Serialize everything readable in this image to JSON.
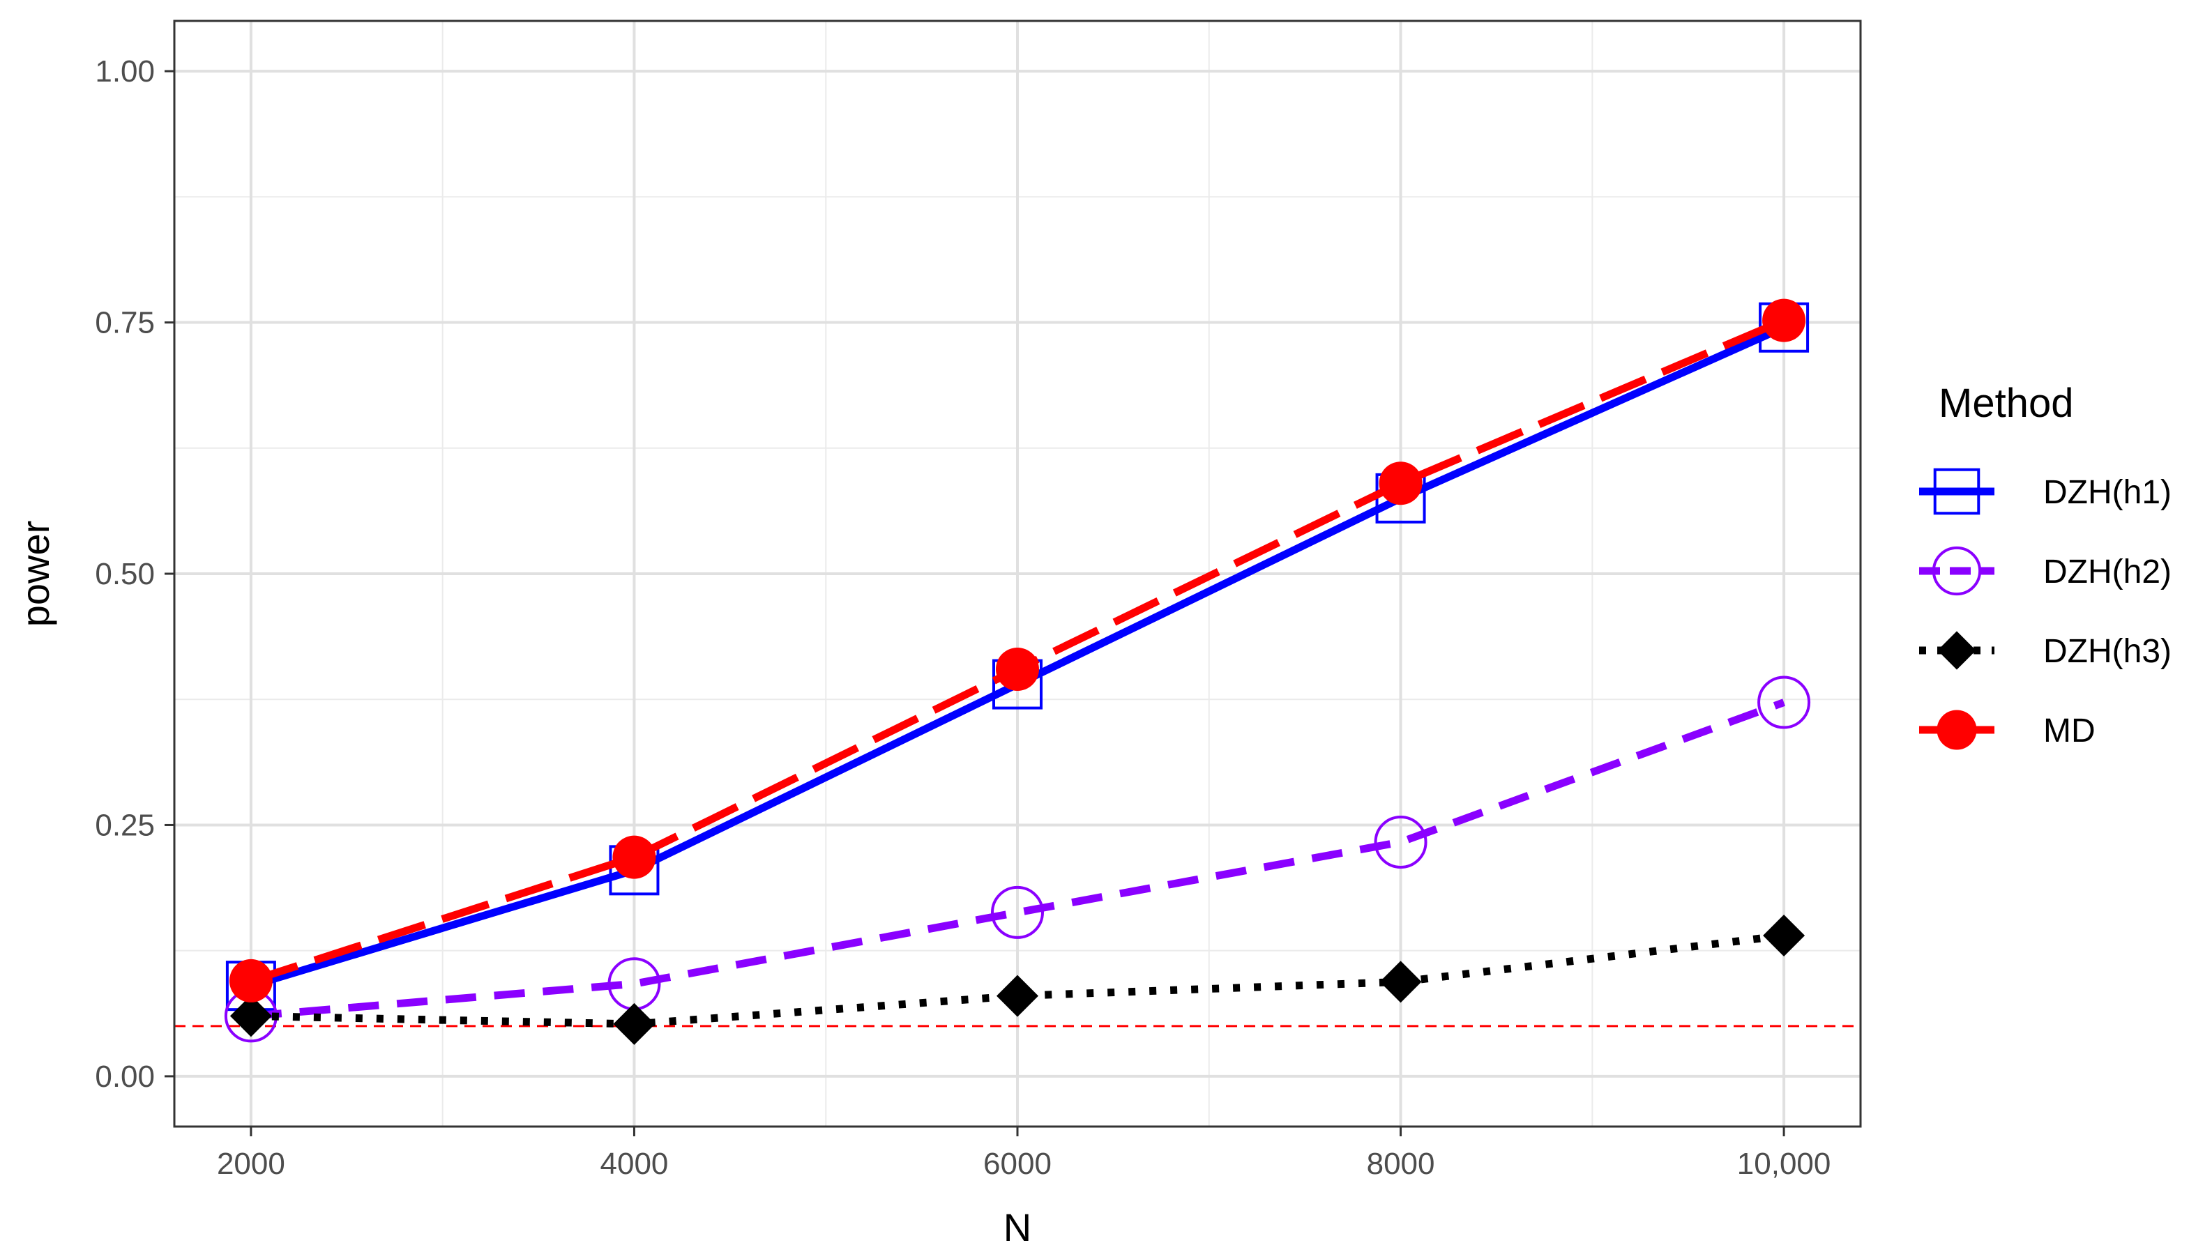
{
  "chart_data": {
    "type": "line",
    "xlabel": "N",
    "ylabel": "power",
    "x": [
      2000,
      4000,
      6000,
      8000,
      10000
    ],
    "xlim": [
      1600,
      10400
    ],
    "ylim": [
      -0.05,
      1.05
    ],
    "x_ticks": [
      2000,
      4000,
      6000,
      8000,
      10000
    ],
    "x_tick_labels": [
      "2000",
      "4000",
      "6000",
      "8000",
      "10,000"
    ],
    "y_ticks": [
      0,
      0.25,
      0.5,
      0.75,
      1.0
    ],
    "y_tick_labels": [
      "0.00",
      "0.25",
      "0.50",
      "0.75",
      "1.00"
    ],
    "grid": true,
    "legend_title": "Method",
    "legend_position": "right",
    "reference_line": {
      "y": 0.05,
      "color": "#ff0000",
      "style": "dashed"
    },
    "series": [
      {
        "name": "DZH(h1)",
        "values": [
          0.09,
          0.205,
          0.39,
          0.575,
          0.745
        ],
        "color": "#0000ff",
        "line": "solid",
        "marker": "open-square"
      },
      {
        "name": "DZH(h2)",
        "values": [
          0.06,
          0.092,
          0.163,
          0.233,
          0.372
        ],
        "color": "#8a00ff",
        "line": "dashed",
        "marker": "open-circle"
      },
      {
        "name": "DZH(h3)",
        "values": [
          0.06,
          0.052,
          0.08,
          0.094,
          0.14
        ],
        "color": "#000000",
        "line": "dotted",
        "marker": "filled-diamond"
      },
      {
        "name": "MD",
        "values": [
          0.095,
          0.218,
          0.405,
          0.59,
          0.752
        ],
        "color": "#ff0000",
        "line": "longdash",
        "marker": "filled-circle"
      }
    ]
  }
}
